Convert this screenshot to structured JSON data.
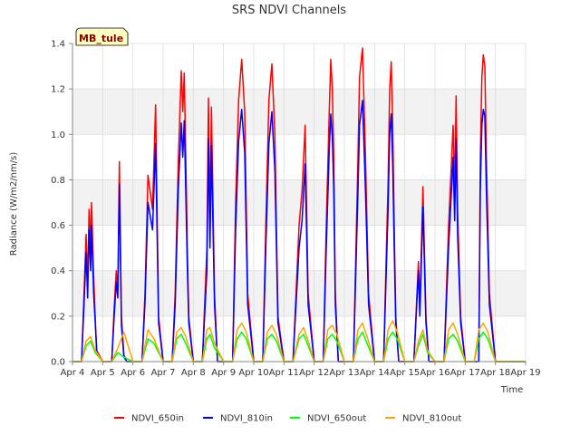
{
  "chart_data": {
    "type": "line",
    "title": "SRS NDVI Channels",
    "xlabel": "Time",
    "ylabel": "Radiance (W/m2/nm/s)",
    "badge": "MB_tule",
    "xlim": [
      0,
      15
    ],
    "ylim": [
      0,
      1.4
    ],
    "x_ticks": [
      "Apr 4",
      "Apr 5",
      "Apr 6",
      "Apr 7",
      "Apr 8",
      "Apr 9",
      "Apr 10",
      "Apr 11",
      "Apr 12",
      "Apr 13",
      "Apr 14",
      "Apr 15",
      "Apr 16",
      "Apr 17",
      "Apr 18",
      "Apr 19"
    ],
    "y_ticks": [
      "0.0",
      "0.2",
      "0.4",
      "0.6",
      "0.8",
      "1.0",
      "1.2",
      "1.4"
    ],
    "y_tick_values": [
      0,
      0.2,
      0.4,
      0.6,
      0.8,
      1.0,
      1.2,
      1.4
    ],
    "x_unit": "days since Apr 4",
    "series": [
      {
        "name": "NDVI_650in",
        "color": "#ff0000",
        "x": [
          0.0,
          0.3,
          0.38,
          0.45,
          0.5,
          0.55,
          0.6,
          0.63,
          0.7,
          0.75,
          0.8,
          1.0,
          1.3,
          1.38,
          1.45,
          1.5,
          1.55,
          1.62,
          1.7,
          1.8,
          2.0,
          2.3,
          2.4,
          2.5,
          2.65,
          2.75,
          2.85,
          3.0,
          3.3,
          3.4,
          3.5,
          3.6,
          3.65,
          3.7,
          3.75,
          3.8,
          3.85,
          4.0,
          4.3,
          4.45,
          4.5,
          4.55,
          4.6,
          4.7,
          4.8,
          5.0,
          5.3,
          5.4,
          5.5,
          5.6,
          5.7,
          5.8,
          6.0,
          6.3,
          6.4,
          6.5,
          6.6,
          6.7,
          6.8,
          7.0,
          7.3,
          7.5,
          7.6,
          7.7,
          7.8,
          8.0,
          8.3,
          8.4,
          8.5,
          8.55,
          8.6,
          8.65,
          8.7,
          8.8,
          9.0,
          9.3,
          9.45,
          9.5,
          9.6,
          9.7,
          9.8,
          10.0,
          10.3,
          10.45,
          10.5,
          10.55,
          10.6,
          10.65,
          10.7,
          10.8,
          11.0,
          11.3,
          11.45,
          11.5,
          11.6,
          11.7,
          11.8,
          12.0,
          12.3,
          12.45,
          12.6,
          12.65,
          12.7,
          12.75,
          12.85,
          13.0,
          13.3,
          13.45,
          13.5,
          13.55,
          13.6,
          13.65,
          13.7,
          13.8,
          14.0,
          14.3,
          14.45,
          14.5,
          14.55,
          14.6,
          14.7,
          14.8,
          15.0
        ],
        "y": [
          0,
          0,
          0.3,
          0.56,
          0.35,
          0.67,
          0.5,
          0.7,
          0.38,
          0.2,
          0.05,
          0,
          0,
          0.24,
          0.4,
          0.3,
          0.88,
          0.2,
          0.03,
          0,
          0,
          0,
          0.3,
          0.82,
          0.67,
          1.13,
          0.2,
          0,
          0,
          0.3,
          0.88,
          1.28,
          1.1,
          1.27,
          0.9,
          0.5,
          0.2,
          0,
          0,
          0.5,
          1.16,
          0.6,
          1.12,
          0.3,
          0,
          0,
          0,
          0.7,
          1.15,
          1.33,
          1.1,
          0.3,
          0,
          0,
          0.6,
          1.15,
          1.31,
          1.0,
          0.2,
          0,
          0,
          0.6,
          0.75,
          1.04,
          0.3,
          0,
          0,
          0.6,
          1.1,
          1.33,
          1.2,
          0.9,
          0.3,
          0,
          0,
          0,
          0.9,
          1.25,
          1.38,
          0.9,
          0.3,
          0,
          0,
          0.8,
          1.2,
          1.32,
          1.05,
          0.6,
          0.2,
          0,
          0,
          0,
          0.44,
          0.25,
          0.77,
          0.2,
          0,
          0,
          0,
          0.6,
          1.04,
          0.75,
          1.17,
          0.66,
          0.2,
          0,
          0,
          0,
          0.9,
          1.25,
          1.35,
          1.3,
          0.9,
          0.3,
          0,
          0,
          0,
          0,
          0,
          0,
          0,
          0,
          0
        ]
      },
      {
        "name": "NDVI_810in",
        "color": "#0000ff",
        "x": [
          0.0,
          0.3,
          0.38,
          0.45,
          0.5,
          0.55,
          0.6,
          0.63,
          0.7,
          0.75,
          0.8,
          1.0,
          1.3,
          1.38,
          1.45,
          1.5,
          1.55,
          1.62,
          1.7,
          1.8,
          2.0,
          2.3,
          2.4,
          2.5,
          2.65,
          2.75,
          2.85,
          3.0,
          3.3,
          3.4,
          3.5,
          3.6,
          3.65,
          3.7,
          3.75,
          3.8,
          3.85,
          4.0,
          4.3,
          4.45,
          4.5,
          4.55,
          4.6,
          4.7,
          4.8,
          5.0,
          5.3,
          5.4,
          5.5,
          5.6,
          5.7,
          5.8,
          6.0,
          6.3,
          6.4,
          6.5,
          6.6,
          6.7,
          6.8,
          7.0,
          7.3,
          7.5,
          7.6,
          7.7,
          7.8,
          8.0,
          8.3,
          8.4,
          8.5,
          8.55,
          8.6,
          8.65,
          8.7,
          8.8,
          9.0,
          9.3,
          9.45,
          9.5,
          9.6,
          9.7,
          9.8,
          10.0,
          10.3,
          10.45,
          10.5,
          10.55,
          10.6,
          10.65,
          10.7,
          10.8,
          11.0,
          11.3,
          11.45,
          11.5,
          11.6,
          11.7,
          11.8,
          12.0,
          12.3,
          12.45,
          12.6,
          12.65,
          12.7,
          12.75,
          12.85,
          13.0,
          13.3,
          13.45,
          13.5,
          13.55,
          13.6,
          13.65,
          13.7,
          13.8,
          14.0,
          14.3,
          14.45,
          14.5,
          14.55,
          14.6,
          14.7,
          14.8,
          15.0
        ],
        "y": [
          0,
          0,
          0.25,
          0.48,
          0.28,
          0.58,
          0.4,
          0.6,
          0.3,
          0.18,
          0.04,
          0,
          0,
          0.2,
          0.35,
          0.28,
          0.78,
          0.16,
          0.02,
          0,
          0,
          0,
          0.26,
          0.7,
          0.58,
          0.96,
          0.17,
          0,
          0,
          0.25,
          0.75,
          1.05,
          0.9,
          1.06,
          0.75,
          0.42,
          0.17,
          0,
          0,
          0.4,
          0.98,
          0.5,
          0.95,
          0.25,
          0,
          0,
          0,
          0.58,
          0.97,
          1.11,
          0.92,
          0.25,
          0,
          0,
          0.5,
          0.96,
          1.1,
          0.84,
          0.17,
          0,
          0,
          0.5,
          0.62,
          0.87,
          0.25,
          0,
          0,
          0.5,
          0.93,
          1.09,
          0.99,
          0.75,
          0.25,
          0,
          0,
          0,
          0.75,
          1.04,
          1.15,
          0.75,
          0.25,
          0,
          0,
          0.68,
          1.0,
          1.09,
          0.87,
          0.5,
          0.17,
          0,
          0,
          0,
          0.4,
          0.2,
          0.68,
          0.17,
          0,
          0,
          0,
          0.5,
          0.9,
          0.62,
          0.98,
          0.55,
          0.17,
          0,
          0,
          0,
          0.75,
          1.04,
          1.11,
          1.08,
          0.75,
          0.25,
          0,
          0,
          0,
          0,
          0,
          0,
          0,
          0,
          0
        ]
      },
      {
        "name": "NDVI_650out",
        "color": "#00ff00",
        "x": [
          0,
          0.3,
          0.45,
          0.6,
          0.75,
          1.0,
          1.3,
          1.5,
          1.7,
          2.0,
          2.3,
          2.5,
          2.7,
          3.0,
          3.3,
          3.45,
          3.6,
          3.75,
          4.0,
          4.3,
          4.45,
          4.55,
          4.7,
          5.0,
          5.3,
          5.45,
          5.6,
          5.75,
          6.0,
          6.3,
          6.45,
          6.6,
          6.75,
          7.0,
          7.3,
          7.5,
          7.65,
          7.8,
          8.0,
          8.3,
          8.45,
          8.6,
          8.75,
          9.0,
          9.3,
          9.45,
          9.6,
          9.75,
          10.0,
          10.3,
          10.45,
          10.6,
          10.75,
          11.0,
          11.3,
          11.45,
          11.6,
          11.75,
          12.0,
          12.3,
          12.45,
          12.6,
          12.75,
          13.0,
          13.3,
          13.45,
          13.6,
          13.75,
          14.0,
          14.3,
          14.5,
          15.0
        ],
        "y": [
          0,
          0,
          0.07,
          0.09,
          0.04,
          0,
          0,
          0.04,
          0.02,
          0,
          0,
          0.1,
          0.08,
          0,
          0,
          0.1,
          0.12,
          0.08,
          0,
          0,
          0.1,
          0.12,
          0.06,
          0,
          0,
          0.1,
          0.13,
          0.1,
          0,
          0,
          0.1,
          0.12,
          0.09,
          0,
          0,
          0.1,
          0.12,
          0.07,
          0,
          0,
          0.1,
          0.12,
          0.09,
          0,
          0,
          0.1,
          0.13,
          0.08,
          0,
          0,
          0.1,
          0.13,
          0.1,
          0,
          0,
          0.07,
          0.12,
          0.04,
          0,
          0,
          0.1,
          0.12,
          0.09,
          0,
          0,
          0.1,
          0.13,
          0.1,
          0,
          0,
          0,
          0
        ]
      },
      {
        "name": "NDVI_810out",
        "color": "#ffa500",
        "x": [
          0,
          0.3,
          0.45,
          0.6,
          0.75,
          1.0,
          1.3,
          1.5,
          1.7,
          2.0,
          2.3,
          2.5,
          2.7,
          3.0,
          3.3,
          3.45,
          3.6,
          3.75,
          4.0,
          4.3,
          4.45,
          4.55,
          4.7,
          5.0,
          5.3,
          5.45,
          5.6,
          5.75,
          6.0,
          6.3,
          6.45,
          6.6,
          6.75,
          7.0,
          7.3,
          7.5,
          7.65,
          7.8,
          8.0,
          8.3,
          8.45,
          8.6,
          8.75,
          9.0,
          9.3,
          9.45,
          9.6,
          9.75,
          10.0,
          10.3,
          10.45,
          10.6,
          10.75,
          11.0,
          11.3,
          11.45,
          11.6,
          11.75,
          12.0,
          12.3,
          12.45,
          12.6,
          12.75,
          13.0,
          13.3,
          13.45,
          13.6,
          13.75,
          14.0,
          14.3,
          14.5,
          15.0
        ],
        "y": [
          0,
          0,
          0.09,
          0.11,
          0.05,
          0,
          0,
          0.06,
          0.13,
          0,
          0,
          0.14,
          0.1,
          0,
          0,
          0.13,
          0.15,
          0.11,
          0,
          0,
          0.14,
          0.15,
          0.08,
          0,
          0,
          0.14,
          0.17,
          0.13,
          0,
          0,
          0.13,
          0.16,
          0.12,
          0,
          0,
          0.12,
          0.15,
          0.09,
          0,
          0,
          0.14,
          0.16,
          0.12,
          0,
          0,
          0.14,
          0.17,
          0.11,
          0,
          0,
          0.14,
          0.18,
          0.13,
          0,
          0,
          0.09,
          0.14,
          0.05,
          0,
          0,
          0.14,
          0.17,
          0.12,
          0,
          0,
          0.14,
          0.17,
          0.13,
          0,
          0,
          0,
          0
        ]
      }
    ]
  }
}
